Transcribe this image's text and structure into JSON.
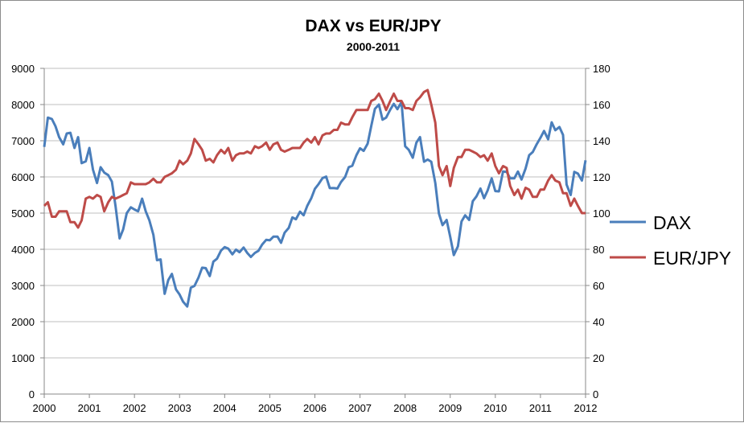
{
  "chart_data": {
    "type": "line",
    "title": "DAX vs EUR/JPY",
    "subtitle": "2000-2011",
    "xlabel": "",
    "ylabel": "",
    "y2label": "",
    "xlim": [
      2000,
      2012
    ],
    "ylim": [
      0,
      9000
    ],
    "y2lim": [
      0,
      180
    ],
    "x_ticks": [
      "2000",
      "2001",
      "2002",
      "2003",
      "2004",
      "2005",
      "2006",
      "2007",
      "2008",
      "2009",
      "2010",
      "2011",
      "2012"
    ],
    "y_ticks": [
      "0",
      "1000",
      "2000",
      "3000",
      "4000",
      "5000",
      "6000",
      "7000",
      "8000",
      "9000"
    ],
    "y2_ticks": [
      "0",
      "20",
      "40",
      "60",
      "80",
      "100",
      "120",
      "140",
      "160",
      "180"
    ],
    "grid": true,
    "legend_position": "right",
    "x": [
      2000,
      2000.08,
      2000.17,
      2000.25,
      2000.33,
      2000.42,
      2000.5,
      2000.58,
      2000.67,
      2000.75,
      2000.83,
      2000.92,
      2001,
      2001.08,
      2001.17,
      2001.25,
      2001.33,
      2001.42,
      2001.5,
      2001.58,
      2001.67,
      2001.75,
      2001.83,
      2001.92,
      2002,
      2002.08,
      2002.17,
      2002.25,
      2002.33,
      2002.42,
      2002.5,
      2002.58,
      2002.67,
      2002.75,
      2002.83,
      2002.92,
      2003,
      2003.08,
      2003.17,
      2003.25,
      2003.33,
      2003.42,
      2003.5,
      2003.58,
      2003.67,
      2003.75,
      2003.83,
      2003.92,
      2004,
      2004.08,
      2004.17,
      2004.25,
      2004.33,
      2004.42,
      2004.5,
      2004.58,
      2004.67,
      2004.75,
      2004.83,
      2004.92,
      2005,
      2005.08,
      2005.17,
      2005.25,
      2005.33,
      2005.42,
      2005.5,
      2005.58,
      2005.67,
      2005.75,
      2005.83,
      2005.92,
      2006,
      2006.08,
      2006.17,
      2006.25,
      2006.33,
      2006.42,
      2006.5,
      2006.58,
      2006.67,
      2006.75,
      2006.83,
      2006.92,
      2007,
      2007.08,
      2007.17,
      2007.25,
      2007.33,
      2007.42,
      2007.5,
      2007.58,
      2007.67,
      2007.75,
      2007.83,
      2007.92,
      2008,
      2008.08,
      2008.17,
      2008.25,
      2008.33,
      2008.42,
      2008.5,
      2008.58,
      2008.67,
      2008.75,
      2008.83,
      2008.92,
      2009,
      2009.08,
      2009.17,
      2009.25,
      2009.33,
      2009.42,
      2009.5,
      2009.58,
      2009.67,
      2009.75,
      2009.83,
      2009.92,
      2010,
      2010.08,
      2010.17,
      2010.25,
      2010.33,
      2010.42,
      2010.5,
      2010.58,
      2010.67,
      2010.75,
      2010.83,
      2010.92,
      2011,
      2011.08,
      2011.17,
      2011.25,
      2011.33,
      2011.42,
      2011.5,
      2011.58,
      2011.67,
      2011.75,
      2011.83,
      2011.92,
      2012
    ],
    "series": [
      {
        "name": "DAX",
        "axis": "left",
        "color": "#4a7ebb",
        "values": [
          6830,
          7640,
          7600,
          7400,
          7100,
          6900,
          7200,
          7220,
          6800,
          7100,
          6380,
          6430,
          6800,
          6200,
          5830,
          6270,
          6120,
          6050,
          5870,
          5200,
          4300,
          4550,
          5000,
          5160,
          5100,
          5050,
          5400,
          5050,
          4800,
          4400,
          3700,
          3720,
          2770,
          3150,
          3320,
          2890,
          2750,
          2550,
          2420,
          2940,
          2990,
          3220,
          3490,
          3480,
          3260,
          3660,
          3740,
          3965,
          4060,
          4020,
          3860,
          3990,
          3920,
          4050,
          3900,
          3790,
          3900,
          3960,
          4130,
          4260,
          4250,
          4350,
          4350,
          4180,
          4460,
          4590,
          4880,
          4830,
          5040,
          4940,
          5200,
          5410,
          5670,
          5800,
          5970,
          6010,
          5690,
          5690,
          5680,
          5860,
          6000,
          6270,
          6310,
          6600,
          6790,
          6720,
          6920,
          7410,
          7880,
          8000,
          7580,
          7640,
          7860,
          8020,
          7870,
          8070,
          6850,
          6750,
          6530,
          6950,
          7100,
          6420,
          6480,
          6420,
          5830,
          4990,
          4670,
          4810,
          4340,
          3840,
          4080,
          4770,
          4940,
          4810,
          5330,
          5460,
          5680,
          5410,
          5630,
          5960,
          5610,
          5600,
          6150,
          6140,
          5960,
          5960,
          6150,
          5930,
          6230,
          6600,
          6690,
          6910,
          7080,
          7270,
          7040,
          7510,
          7290,
          7380,
          7160,
          5790,
          5500,
          6140,
          6090,
          5900,
          6460
        ]
      },
      {
        "name": "EUR/JPY",
        "axis": "right",
        "color": "#be4b48",
        "values": [
          104,
          106,
          98,
          98,
          101,
          101,
          101,
          95,
          95,
          92,
          96,
          108,
          109,
          108,
          110,
          109,
          101,
          106,
          109,
          108,
          109,
          110,
          111,
          117,
          116,
          116,
          116,
          116,
          117,
          119,
          117,
          117,
          120,
          121,
          122,
          124,
          129,
          127,
          129,
          133,
          141,
          138,
          135,
          129,
          130,
          128,
          132,
          135,
          133,
          136,
          129,
          132,
          133,
          133,
          134,
          133,
          137,
          136,
          137,
          139,
          135,
          138,
          139,
          135,
          134,
          135,
          136,
          136,
          136,
          139,
          141,
          139,
          142,
          138,
          143,
          144,
          144,
          146,
          146,
          150,
          149,
          149,
          153,
          157,
          157,
          157,
          157,
          162,
          163,
          166,
          162,
          157,
          162,
          166,
          162,
          162,
          158,
          158,
          157,
          162,
          164,
          167,
          168,
          160,
          150,
          126,
          121,
          126,
          115,
          125,
          131,
          131,
          135,
          135,
          134,
          133,
          131,
          132,
          129,
          133,
          126,
          122,
          126,
          125,
          115,
          110,
          113,
          108,
          114,
          113,
          109,
          109,
          113,
          113,
          118,
          121,
          118,
          117,
          111,
          111,
          104,
          108,
          104,
          100,
          100
        ]
      }
    ]
  }
}
